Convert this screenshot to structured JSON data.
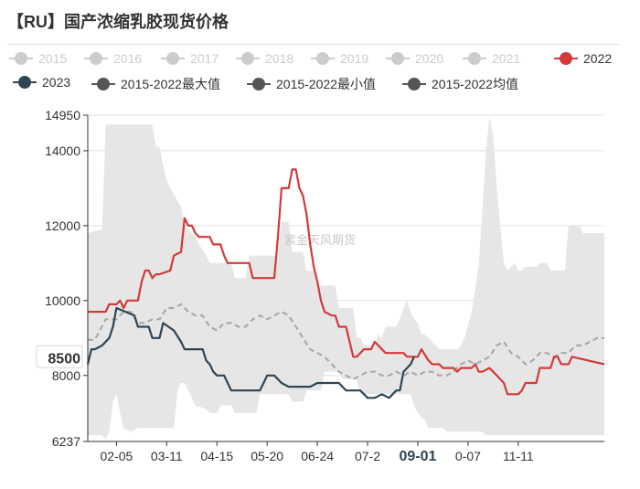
{
  "header": {
    "title": "【RU】国产浓缩乳胶现货价格"
  },
  "legend": [
    {
      "label": "2015",
      "color": "#cccccc",
      "active": false
    },
    {
      "label": "2016",
      "color": "#cccccc",
      "active": false
    },
    {
      "label": "2017",
      "color": "#cccccc",
      "active": false
    },
    {
      "label": "2018",
      "color": "#cccccc",
      "active": false
    },
    {
      "label": "2019",
      "color": "#cccccc",
      "active": false
    },
    {
      "label": "2020",
      "color": "#cccccc",
      "active": false
    },
    {
      "label": "2021",
      "color": "#cccccc",
      "active": false
    },
    {
      "label": "2022",
      "color": "#d23a3a",
      "active": true
    },
    {
      "label": "2023",
      "color": "#2f4554",
      "active": true
    },
    {
      "label": "2015-2022最大值",
      "color": "#555555",
      "active": true
    },
    {
      "label": "2015-2022最小值",
      "color": "#555555",
      "active": true
    },
    {
      "label": "2015-2022均值",
      "color": "#555555",
      "active": true
    }
  ],
  "watermark": "紫金天风期货",
  "chart_data": {
    "type": "line",
    "title": "【RU】国产浓缩乳胶现货价格",
    "xlabel": "",
    "ylabel": "",
    "x_ticks": [
      "02-05",
      "03-11",
      "04-15",
      "05-20",
      "06-24",
      "07-2",
      "09-01",
      "0-07",
      "11-11"
    ],
    "x_tick_positions": [
      8,
      22,
      36,
      50,
      64,
      78,
      92,
      106,
      120
    ],
    "x_highlight": "09-01",
    "y_ticks": [
      6237,
      8000,
      10000,
      12000,
      14000,
      14950
    ],
    "y_highlight": 8500,
    "ylim": [
      6237,
      14950
    ],
    "x_count": 145,
    "series": [
      {
        "name": "2015-2022最大值",
        "style": "band-upper",
        "color": "#e6e6e6",
        "x": [
          0,
          4,
          5,
          18,
          19,
          20,
          21,
          22,
          23,
          26,
          27,
          30,
          31,
          33,
          34,
          40,
          41,
          44,
          45,
          53,
          54,
          56,
          57,
          60,
          61,
          63,
          64,
          69,
          70,
          74,
          75,
          76,
          77,
          80,
          81,
          82,
          83,
          86,
          87,
          88,
          89,
          90,
          91,
          92,
          93,
          94,
          95,
          96,
          97,
          98,
          99,
          100,
          103,
          104,
          105,
          107,
          108,
          109,
          110,
          111,
          112,
          113,
          114,
          115,
          116,
          117,
          118,
          119,
          120,
          121,
          122,
          125,
          126,
          128,
          129,
          133,
          134,
          137,
          138,
          144
        ],
        "values": [
          11800,
          11900,
          14700,
          14700,
          14100,
          14100,
          13600,
          13200,
          13000,
          12500,
          12000,
          11700,
          11500,
          11200,
          11000,
          11000,
          10600,
          10600,
          11200,
          11200,
          12100,
          12100,
          11300,
          11300,
          10800,
          10800,
          10400,
          10400,
          9800,
          9800,
          9000,
          9000,
          8800,
          8800,
          9100,
          9000,
          9300,
          9300,
          9500,
          9800,
          10000,
          9700,
          9500,
          9400,
          9100,
          9100,
          9000,
          8900,
          8800,
          8700,
          8700,
          8700,
          8700,
          8800,
          9000,
          9700,
          10300,
          11000,
          12400,
          14000,
          14900,
          14400,
          13000,
          12000,
          11000,
          10800,
          10900,
          11000,
          10800,
          10800,
          10900,
          10900,
          11000,
          11000,
          10800,
          10800,
          12000,
          12000,
          11800,
          11800
        ]
      },
      {
        "name": "2015-2022最小值",
        "style": "band-lower",
        "color": "#e6e6e6",
        "x": [
          0,
          4,
          5,
          6,
          7,
          8,
          9,
          10,
          12,
          14,
          20,
          24,
          25,
          26,
          27,
          29,
          30,
          33,
          34,
          36,
          37,
          40,
          41,
          47,
          48,
          56,
          57,
          60,
          61,
          65,
          66,
          70,
          71,
          75,
          76,
          90,
          91,
          92,
          93,
          94,
          95,
          99,
          100,
          110,
          111,
          144
        ],
        "values": [
          6400,
          6400,
          6300,
          6500,
          7300,
          7500,
          7000,
          6600,
          6500,
          6600,
          6600,
          6600,
          7600,
          7800,
          7800,
          7400,
          7200,
          7100,
          7000,
          7000,
          7200,
          7200,
          7000,
          7000,
          7500,
          7500,
          7300,
          7300,
          7600,
          7600,
          8100,
          8100,
          7900,
          7900,
          7500,
          7500,
          7200,
          7000,
          6900,
          6800,
          6600,
          6600,
          6500,
          6500,
          6400,
          6400
        ]
      },
      {
        "name": "2015-2022均值",
        "style": "dashed",
        "color": "#aaaaaa",
        "x": [
          0,
          2,
          5,
          8,
          10,
          12,
          14,
          16,
          18,
          20,
          22,
          24,
          26,
          28,
          30,
          32,
          34,
          36,
          38,
          40,
          42,
          44,
          46,
          48,
          50,
          52,
          54,
          56,
          58,
          60,
          62,
          64,
          66,
          68,
          70,
          72,
          74,
          76,
          78,
          80,
          82,
          84,
          86,
          88,
          90,
          92,
          94,
          96,
          98,
          100,
          102,
          104,
          106,
          108,
          110,
          112,
          114,
          116,
          118,
          120,
          122,
          124,
          126,
          128,
          130,
          132,
          134,
          136,
          138,
          140,
          142,
          144
        ],
        "values": [
          8950,
          8950,
          9500,
          9500,
          9700,
          9700,
          9400,
          9400,
          9500,
          9500,
          9800,
          9800,
          9900,
          9700,
          9600,
          9600,
          9300,
          9200,
          9400,
          9400,
          9300,
          9300,
          9500,
          9600,
          9500,
          9600,
          9700,
          9600,
          9300,
          9000,
          8700,
          8600,
          8500,
          8300,
          8100,
          8000,
          7900,
          8000,
          8100,
          8100,
          8000,
          8000,
          8100,
          8000,
          8100,
          8000,
          8100,
          8100,
          8000,
          8000,
          8100,
          8300,
          8400,
          8300,
          8400,
          8500,
          8800,
          8900,
          8600,
          8500,
          8300,
          8400,
          8600,
          8600,
          8500,
          8600,
          8600,
          8800,
          8800,
          8900,
          9000,
          9000
        ]
      },
      {
        "name": "2022",
        "style": "line",
        "color": "#d23a3a",
        "x": [
          0,
          5,
          6,
          8,
          9,
          10,
          11,
          14,
          15,
          16,
          17,
          18,
          19,
          20,
          23,
          24,
          26,
          27,
          28,
          29,
          30,
          31,
          34,
          35,
          37,
          38,
          39,
          40,
          41,
          45,
          46,
          52,
          53,
          54,
          56,
          57,
          58,
          59,
          60,
          61,
          62,
          63,
          64,
          65,
          66,
          68,
          69,
          70,
          72,
          73,
          74,
          75,
          77,
          79,
          80,
          82,
          83,
          85,
          88,
          89,
          90,
          92,
          93,
          95,
          96,
          98,
          99,
          102,
          103,
          104,
          107,
          108,
          109,
          110,
          112,
          113,
          114,
          116,
          117,
          120,
          121,
          122,
          125,
          126,
          127,
          129,
          130,
          131,
          132,
          134,
          135,
          144
        ],
        "values": [
          9700,
          9700,
          9900,
          9900,
          10000,
          9800,
          10000,
          10000,
          10500,
          10800,
          10800,
          10600,
          10700,
          10700,
          10800,
          11200,
          11300,
          12200,
          12000,
          12000,
          11800,
          11700,
          11700,
          11500,
          11500,
          11200,
          11000,
          11000,
          11000,
          11000,
          10600,
          10600,
          11700,
          13000,
          13000,
          13500,
          13500,
          13000,
          12800,
          12300,
          11500,
          10900,
          10500,
          10000,
          9700,
          9600,
          9600,
          9300,
          9300,
          8900,
          8500,
          8500,
          8700,
          8700,
          8900,
          8700,
          8600,
          8600,
          8600,
          8500,
          8500,
          8500,
          8700,
          8400,
          8300,
          8300,
          8200,
          8200,
          8100,
          8200,
          8200,
          8300,
          8100,
          8100,
          8200,
          8100,
          8000,
          7800,
          7500,
          7500,
          7600,
          7800,
          7800,
          8200,
          8200,
          8200,
          8500,
          8500,
          8300,
          8300,
          8500,
          8300
        ]
      },
      {
        "name": "2023",
        "style": "line",
        "color": "#2f4554",
        "x": [
          0,
          1,
          2,
          4,
          5,
          6,
          7,
          8,
          13,
          14,
          17,
          18,
          20,
          21,
          24,
          26,
          27,
          32,
          33,
          34,
          35,
          36,
          38,
          39,
          40,
          44,
          48,
          49,
          50,
          52,
          54,
          56,
          58,
          60,
          62,
          64,
          65,
          66,
          70,
          71,
          72,
          76,
          77,
          78,
          80,
          82,
          84,
          86,
          87,
          88,
          89,
          90,
          91
        ],
        "values": [
          8300,
          8700,
          8700,
          8800,
          8900,
          9000,
          9300,
          9800,
          9600,
          9300,
          9300,
          9000,
          9000,
          9400,
          9200,
          8900,
          8700,
          8700,
          8400,
          8300,
          8100,
          8000,
          8000,
          7800,
          7600,
          7600,
          7600,
          7800,
          8000,
          8000,
          7800,
          7700,
          7700,
          7700,
          7700,
          7800,
          7800,
          7800,
          7800,
          7700,
          7600,
          7600,
          7500,
          7400,
          7400,
          7500,
          7400,
          7600,
          7600,
          8100,
          8200,
          8300,
          8500
        ]
      }
    ]
  }
}
